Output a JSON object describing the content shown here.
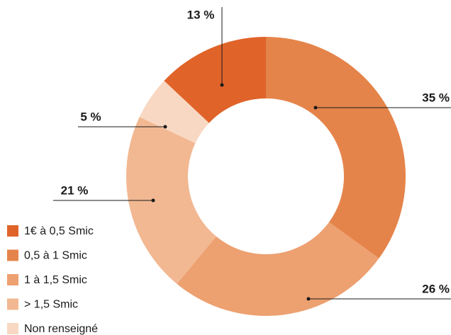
{
  "chart_data": {
    "type": "donut",
    "categories": [
      "1€ à 0,5 Smic",
      "0,5 à 1 Smic",
      "1 à 1,5 Smic",
      "> 1,5 Smic",
      "Non renseigné"
    ],
    "values": [
      13,
      35,
      26,
      21,
      5
    ],
    "value_labels": [
      "13 %",
      "35 %",
      "26 %",
      "21 %",
      "5 %"
    ],
    "colors": [
      "#e0632a",
      "#e5844a",
      "#eda070",
      "#f2b892",
      "#f8d8c3"
    ]
  }
}
